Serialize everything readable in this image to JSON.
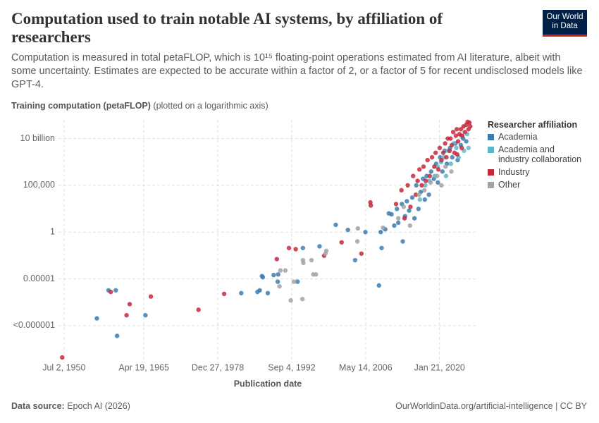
{
  "chart_data": {
    "type": "scatter",
    "title": "Computation used to train notable AI systems, by affiliation of researchers",
    "subtitle": "Computation is measured in total petaFLOP, which is 10¹⁵ floating-point operations estimated from AI literature, albeit with some uncertainty. Estimates are expected to be accurate within a factor of 2, or a factor of 5 for recent undisclosed models like GPT-4.",
    "y_label": "Training computation (petaFLOP)",
    "y_label_note": "(plotted on a logarithmic axis)",
    "x_label": "Publication date",
    "legend_title": "Researcher affiliation",
    "legend_position": "right",
    "y_scale": "log",
    "grid": true,
    "xlim": [
      "1949-02-01",
      "2026-10-01"
    ],
    "xticks": [
      {
        "value": "1950-07-02",
        "label": "Jul 2, 1950"
      },
      {
        "value": "1965-04-19",
        "label": "Apr 19, 1965"
      },
      {
        "value": "1978-12-27",
        "label": "Dec 27, 1978"
      },
      {
        "value": "1992-09-04",
        "label": "Sep 4, 1992"
      },
      {
        "value": "2006-05-14",
        "label": "May 14, 2006"
      },
      {
        "value": "2020-01-21",
        "label": "Jan 21, 2020"
      }
    ],
    "ylim": [
      1e-14,
      1000000000000.0
    ],
    "yticks": [
      {
        "value": 1e-10,
        "label": "<0.000001"
      },
      {
        "value": 1e-05,
        "label": "0.00001"
      },
      1,
      {
        "value": 100000,
        "label": "100,000"
      },
      {
        "value": 10000000000,
        "label": "10 billion"
      }
    ],
    "series": [
      {
        "name": "Academia",
        "color": "#3b7bb0",
        "x": [
          "1956-08-01",
          "1958-10-01",
          "1960-02-01",
          "1960-05-01",
          "1965-08-01",
          "1983-05-01",
          "1986-05-01",
          "1986-10-01",
          "1987-03-01",
          "1987-05-01",
          "1988-04-01",
          "1989-05-01",
          "1990-03-01",
          "1990-02-01",
          "1993-10-01",
          "1994-10-01",
          "1997-11-01",
          "2000-11-01",
          "2003-02-01",
          "2004-06-01",
          "2006-05-01",
          "2008-11-01",
          "2009-05-01",
          "2009-03-01",
          "2010-01-01",
          "2010-09-01",
          "2011-03-01",
          "2011-09-01",
          "2012-03-01",
          "2012-06-01",
          "2013-02-01",
          "2013-04-01",
          "2013-09-01",
          "2014-01-01",
          "2014-06-01",
          "2015-01-01",
          "2015-06-01",
          "2015-10-01",
          "2016-03-01",
          "2016-08-01",
          "2017-01-01",
          "2017-05-01",
          "2017-09-01",
          "2018-02-01",
          "2018-07-01",
          "2019-01-01",
          "2019-06-01",
          "2019-10-01",
          "2020-03-01",
          "2020-08-01",
          "2021-01-01",
          "2021-06-01",
          "2022-01-01",
          "2022-06-01",
          "2023-01-01",
          "2023-06-01",
          "2024-01-01",
          "2024-06-01",
          "2025-01-01"
        ],
        "values": [
          6e-10,
          6e-07,
          6e-07,
          8e-12,
          1.3e-09,
          3e-07,
          4e-07,
          6e-07,
          2e-05,
          1.5e-05,
          3e-07,
          2.6e-05,
          3e-05,
          5e-06,
          5e-06,
          0.02,
          0.03,
          6,
          1.7,
          0.001,
          1,
          2e-06,
          0.02,
          1,
          2,
          100,
          80,
          5,
          300,
          10,
          1000,
          0.1,
          50,
          2000,
          200,
          5000,
          30,
          100000,
          300,
          20000,
          500000,
          3000,
          1000000,
          10000,
          3000000,
          500000,
          20000000,
          200000,
          100000000,
          3000000,
          500000000,
          20000000,
          1000000000,
          100000000,
          3000000000,
          50000000,
          2000000000,
          10000000000,
          5000000000
        ]
      },
      {
        "name": "Academia and industry collaboration",
        "color": "#5cb8c6",
        "x": [
          "2016-06-01",
          "2017-06-01",
          "2018-03-01",
          "2019-03-01",
          "2019-09-01",
          "2020-05-01",
          "2020-11-01",
          "2021-04-01",
          "2021-09-01",
          "2022-03-01",
          "2022-09-01",
          "2023-03-01",
          "2023-08-01",
          "2024-02-01",
          "2024-08-01",
          "2025-03-01",
          "2025-06-01"
        ],
        "values": [
          3000,
          100000,
          300000,
          1000000,
          10000000,
          30000000,
          100000000,
          1000000,
          500000000,
          20000000,
          3000000000,
          1000000000,
          100000000,
          20000000000,
          500000000,
          30000000000,
          1000000000
        ]
      },
      {
        "name": "Industry",
        "color": "#c5283d",
        "x": [
          "1950-03-01",
          "1959-03-01",
          "1962-02-01",
          "1962-09-01",
          "1966-08-01",
          "1975-06-01",
          "1980-03-01",
          "1989-12-01",
          "1992-03-01",
          "1993-06-01",
          "1998-09-01",
          "2001-12-01",
          "2005-08-01",
          "2007-04-01",
          "2007-05-01",
          "2012-01-01",
          "2013-01-01",
          "2013-08-01",
          "2014-03-01",
          "2014-09-01",
          "2015-03-01",
          "2015-09-01",
          "2016-01-01",
          "2016-05-01",
          "2016-10-01",
          "2017-02-01",
          "2017-07-01",
          "2017-11-01",
          "2018-04-01",
          "2018-09-01",
          "2019-02-01",
          "2019-05-01",
          "2019-11-01",
          "2020-02-01",
          "2020-06-01",
          "2020-10-01",
          "2021-02-01",
          "2021-05-01",
          "2021-08-01",
          "2021-12-01",
          "2022-02-01",
          "2022-05-01",
          "2022-08-01",
          "2022-11-01",
          "2023-02-01",
          "2023-04-01",
          "2023-07-01",
          "2023-10-01",
          "2024-01-01",
          "2024-04-01",
          "2024-07-01",
          "2024-10-01",
          "2025-01-01",
          "2025-04-01",
          "2025-06-01",
          "2025-08-01",
          "2025-10-01",
          "2024-03-01",
          "2023-05-01"
        ],
        "values": [
          4e-14,
          4e-07,
          1.3e-09,
          2e-08,
          1.3e-07,
          5e-09,
          2.5e-07,
          0.0013,
          0.02,
          0.015,
          0.003,
          0.08,
          0.005,
          1500,
          700,
          1000,
          30000,
          30,
          100000,
          500,
          1000000,
          10000,
          300000,
          5000000,
          100000,
          10000000,
          300000,
          50000000,
          1000000,
          100000000,
          10000000,
          300000000,
          5000000,
          1000000000,
          50000000,
          300000000,
          3000000000,
          100000000,
          10000000000,
          500000000,
          10000000000,
          2000000000,
          50000000000,
          300000000,
          20000000000,
          100000000000,
          5000000000,
          30000000000,
          100000000000,
          20000000000,
          200000000000,
          50000000000,
          300000000000,
          600000000000,
          100000000000,
          500000000000,
          200000000000,
          1000000000,
          200000000
        ]
      },
      {
        "name": "Other",
        "color": "#a3a1a5",
        "x": [
          "1990-08-01",
          "1991-07-01",
          "1990-06-01",
          "1992-07-01",
          "1994-09-01",
          "1994-10-01",
          "1994-11-01",
          "1996-05-01",
          "1996-09-01",
          "1997-03-01",
          "1993-02-01",
          "1998-12-01",
          "1999-02-01",
          "2004-12-01",
          "2004-11-01",
          "2009-08-01",
          "2012-06-01",
          "2013-06-01",
          "2014-08-01",
          "2016-04-01",
          "2017-04-01",
          "2018-06-01",
          "2019-08-01",
          "2020-06-01",
          "2021-03-01",
          "2022-04-01"
        ],
        "values": [
          8e-05,
          8e-05,
          1.6e-06,
          5e-08,
          7e-08,
          0.001,
          0.0005,
          0.001,
          3e-05,
          3e-05,
          5e-06,
          0.005,
          0.01,
          2.5,
          0.1,
          3,
          30,
          500,
          5,
          10000,
          30000,
          200000,
          1000000,
          100000,
          10000000,
          3000000
        ]
      }
    ]
  },
  "source_label": "Data source:",
  "source": "Epoch AI (2026)",
  "credit": "OurWorldinData.org/artificial-intelligence | CC BY",
  "logo": {
    "line1": "Our World",
    "line2": "in Data"
  }
}
